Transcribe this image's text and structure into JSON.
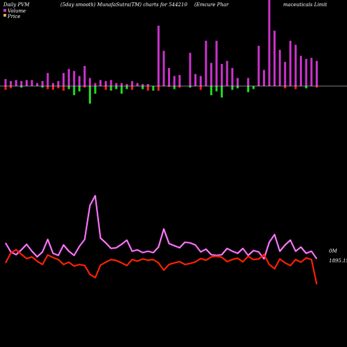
{
  "header": {
    "left": "Daily PVM",
    "mid1": "(5day smooth) MunafaSutra(TM) charts for 544210",
    "mid2": "(Emcure  Phar",
    "right": "maceuticals Limit"
  },
  "legend": {
    "volume": "Volume",
    "price": "Price"
  },
  "labels": {
    "volume_end": "0M",
    "price_end": "1895.15"
  },
  "colors": {
    "background": "#000000",
    "volume_up": "#cc33cc",
    "volume_down_green": "#22dd22",
    "volume_down_red": "#ff2222",
    "volume_line": "#cc33cc",
    "volume_line_inner": "#ffffff",
    "price_line": "#ff2200",
    "baseline": "#ffffff"
  },
  "chart_data": {
    "type": "bar",
    "x_index": [
      1,
      2,
      3,
      4,
      5,
      6,
      7,
      8,
      9,
      10,
      11,
      12,
      13,
      14,
      15,
      16,
      17,
      18,
      19,
      20,
      21,
      22,
      23,
      24,
      25,
      26,
      27,
      28,
      29,
      30,
      31,
      32,
      33,
      34,
      35,
      36,
      37,
      38,
      39,
      40,
      41,
      42,
      43,
      44,
      45,
      46,
      47,
      48,
      49,
      50,
      51,
      52,
      53,
      54,
      55,
      56,
      57,
      58,
      59,
      60
    ],
    "bars": {
      "up": [
        7,
        5,
        6,
        5,
        6,
        6,
        3,
        5,
        13,
        3,
        5,
        13,
        17,
        15,
        10,
        20,
        8,
        3,
        6,
        5,
        6,
        3,
        3,
        2,
        5,
        3,
        2,
        2,
        0,
        60,
        35,
        18,
        10,
        11,
        0,
        33,
        12,
        10,
        45,
        23,
        45,
        22,
        25,
        18,
        8,
        0,
        8,
        0,
        40,
        16,
        86,
        55,
        36,
        24,
        45,
        41,
        30,
        27,
        28,
        25
      ],
      "down": [
        5,
        3,
        0,
        2,
        0,
        0,
        0,
        2,
        4,
        5,
        3,
        6,
        4,
        12,
        7,
        2,
        23,
        10,
        0,
        5,
        6,
        4,
        10,
        4,
        5,
        0,
        4,
        6,
        6,
        6,
        0,
        1,
        4,
        2,
        0,
        2,
        0,
        5,
        0,
        12,
        7,
        15,
        0,
        5,
        3,
        0,
        8,
        4,
        0,
        0,
        0,
        0,
        0,
        3,
        0,
        4,
        0,
        3,
        0,
        2
      ],
      "down_color": [
        "r",
        "r",
        "r",
        "g",
        "r",
        "r",
        "r",
        "g",
        "r",
        "r",
        "r",
        "r",
        "g",
        "g",
        "g",
        "r",
        "g",
        "g",
        "r",
        "r",
        "g",
        "g",
        "g",
        "g",
        "r",
        "r",
        "g",
        "r",
        "g",
        "r",
        "r",
        "r",
        "g",
        "r",
        "r",
        "g",
        "r",
        "r",
        "r",
        "g",
        "g",
        "g",
        "g",
        "g",
        "g",
        "g",
        "g",
        "g",
        "g",
        "r",
        "r",
        "r",
        "r",
        "r",
        "r",
        "r",
        "g",
        "g",
        "r",
        "r"
      ]
    },
    "volume_line": [
      350,
      363,
      367,
      360,
      352,
      362,
      370,
      363,
      345,
      365,
      368,
      353,
      362,
      368,
      355,
      345,
      296,
      282,
      343,
      350,
      358,
      357,
      352,
      346,
      362,
      360,
      364,
      362,
      364,
      356,
      330,
      351,
      354,
      357,
      349,
      350,
      353,
      363,
      359,
      367,
      368,
      367,
      358,
      362,
      365,
      358,
      368,
      361,
      363,
      373,
      349,
      338,
      362,
      353,
      346,
      362,
      356,
      365,
      362,
      373
    ],
    "price": [
      1960,
      1990,
      2000,
      1986,
      1973,
      1978,
      1965,
      1955,
      1984,
      1976,
      1970,
      1955,
      1962,
      1950,
      1955,
      1952,
      1925,
      1915,
      1953,
      1962,
      1970,
      1967,
      1960,
      1952,
      1970,
      1965,
      1972,
      1968,
      1970,
      1960,
      1938,
      1955,
      1960,
      1964,
      1955,
      1958,
      1963,
      1973,
      1968,
      1978,
      1980,
      1977,
      1964,
      1970,
      1974,
      1963,
      1980,
      1970,
      1972,
      1985,
      1955,
      1942,
      1972,
      1960,
      1952,
      1970,
      1962,
      1975,
      1970,
      1895.15
    ],
    "xlabel": "",
    "ylabel": "",
    "grid": false,
    "legend_position": "top-left"
  }
}
